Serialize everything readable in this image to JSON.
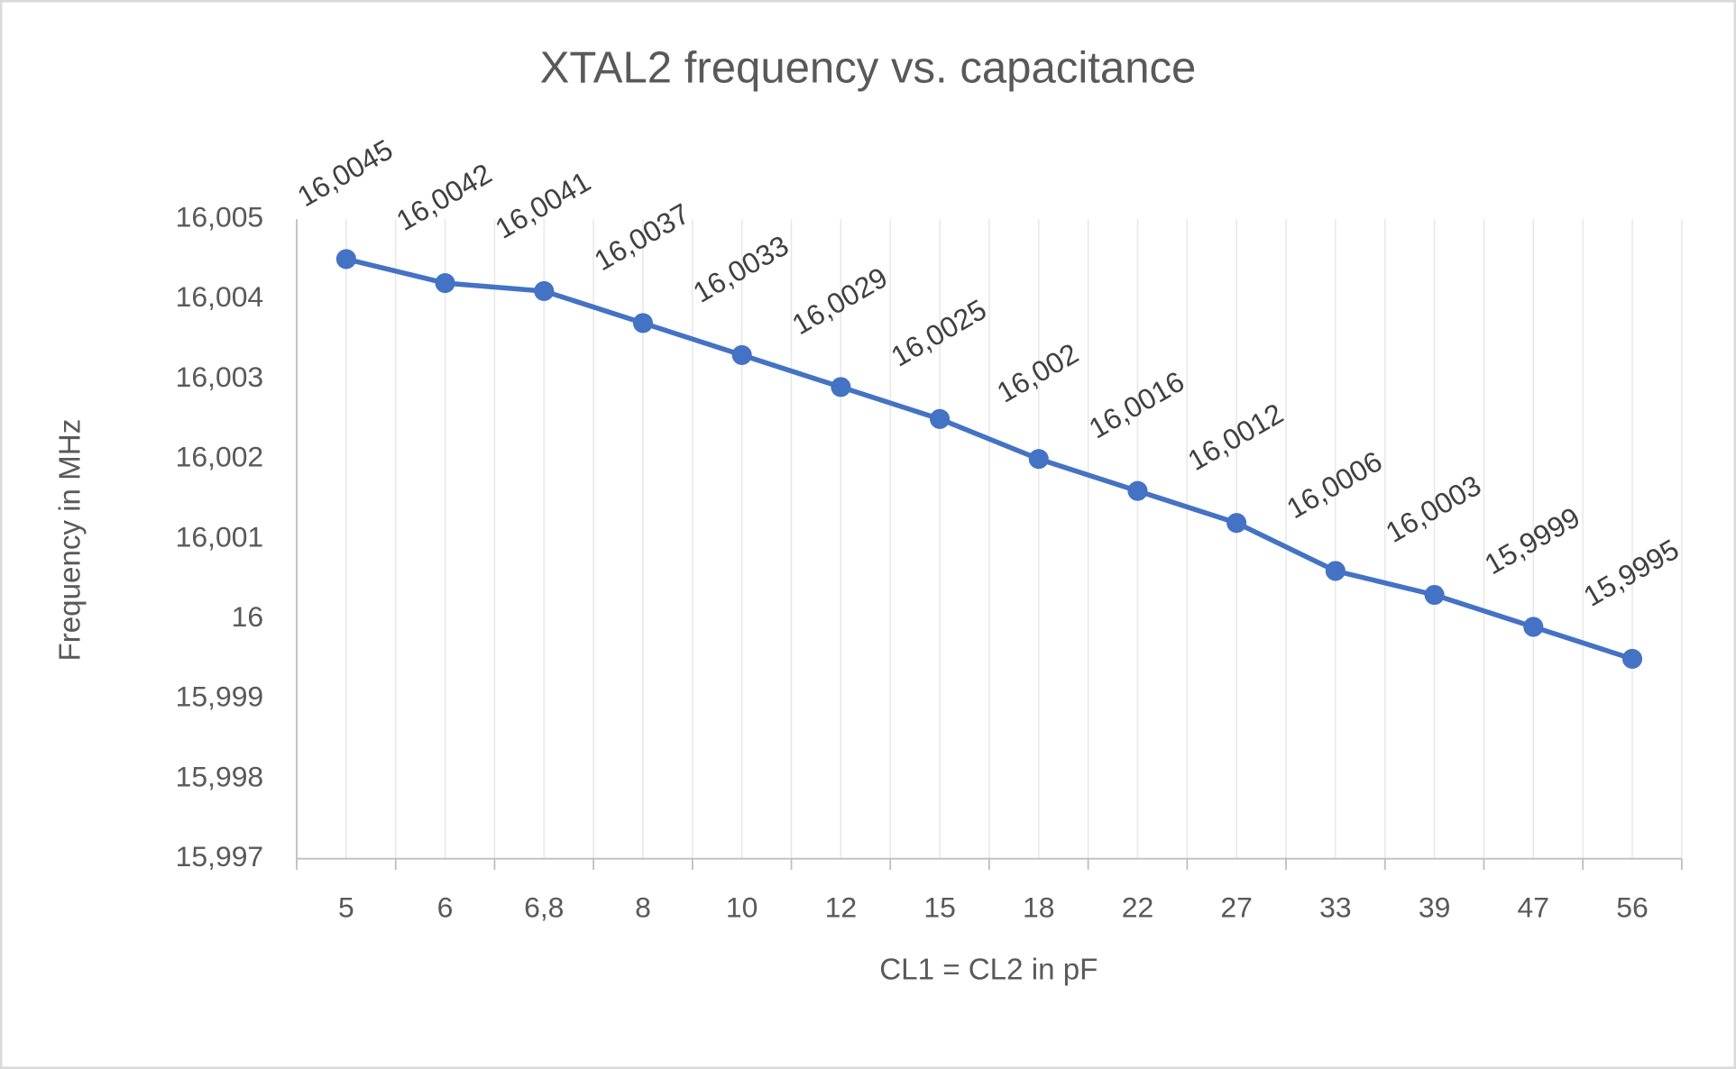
{
  "chart_data": {
    "type": "line",
    "title": "XTAL2 frequency vs. capacitance",
    "x_label": "CL1 = CL2 in pF",
    "y_label": "Frequency in MHz",
    "categories": [
      "5",
      "6",
      "6,8",
      "8",
      "10",
      "12",
      "15",
      "18",
      "22",
      "27",
      "33",
      "39",
      "47",
      "56"
    ],
    "series": [
      {
        "name": "Frequency",
        "color": "#4472c4",
        "values": [
          16.0045,
          16.0042,
          16.0041,
          16.0037,
          16.0033,
          16.0029,
          16.0025,
          16.002,
          16.0016,
          16.0012,
          16.0006,
          16.0003,
          15.9999,
          15.9995
        ],
        "value_labels": [
          "16,0045",
          "16,0042",
          "16,0041",
          "16,0037",
          "16,0033",
          "16,0029",
          "16,0025",
          "16,002",
          "16,0016",
          "16,0012",
          "16,0006",
          "16,0003",
          "15,9999",
          "15,9995"
        ]
      }
    ],
    "ylim": [
      15.997,
      16.005
    ],
    "yticks": [
      {
        "value": 15.997,
        "label": "15,997"
      },
      {
        "value": 15.998,
        "label": "15,998"
      },
      {
        "value": 15.999,
        "label": "15,999"
      },
      16,
      {
        "value": 16.001,
        "label": "16,001"
      },
      {
        "value": 16.002,
        "label": "16,002"
      },
      {
        "value": 16.003,
        "label": "16,003"
      },
      {
        "value": 16.004,
        "label": "16,004"
      },
      {
        "value": 16.005,
        "label": "16,005"
      }
    ],
    "grid": true
  }
}
